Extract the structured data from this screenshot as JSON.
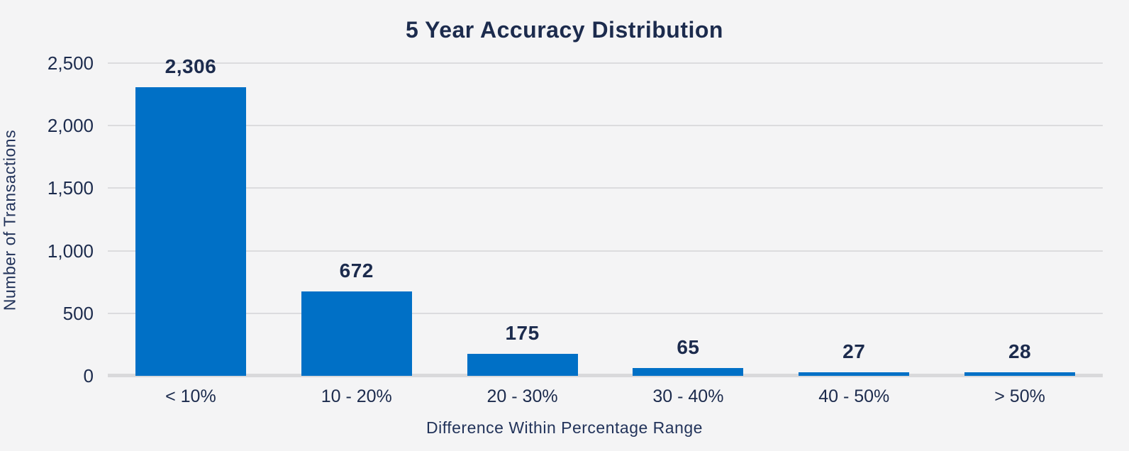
{
  "title": "5 Year Accuracy Distribution",
  "colors": {
    "background": "#f4f4f5",
    "bar": "#0070c6",
    "text": "#1c2b4d",
    "axis_text": "#22335a",
    "gridline": "#dcdcde",
    "baseline": "#d9d9db"
  },
  "chart_data": {
    "type": "bar",
    "title": "5 Year Accuracy Distribution",
    "categories": [
      "< 10%",
      "10 - 20%",
      "20 - 30%",
      "30 - 40%",
      "40 - 50%",
      "> 50%"
    ],
    "values": [
      2306,
      672,
      175,
      65,
      27,
      28
    ],
    "value_labels": [
      "2,306",
      "672",
      "175",
      "65",
      "27",
      "28"
    ],
    "xlabel": "Difference Within Percentage Range",
    "ylabel": "Number of Transactions",
    "ylim": [
      0,
      2500
    ],
    "yticks": [
      {
        "value": 0,
        "label": "0"
      },
      {
        "value": 500,
        "label": "500"
      },
      {
        "value": 1000,
        "label": "1,000"
      },
      {
        "value": 1500,
        "label": "1,500"
      },
      {
        "value": 2000,
        "label": "2,000"
      },
      {
        "value": 2500,
        "label": "2,500"
      }
    ],
    "grid": true,
    "legend": "none",
    "bar_color": "#0070c6"
  }
}
